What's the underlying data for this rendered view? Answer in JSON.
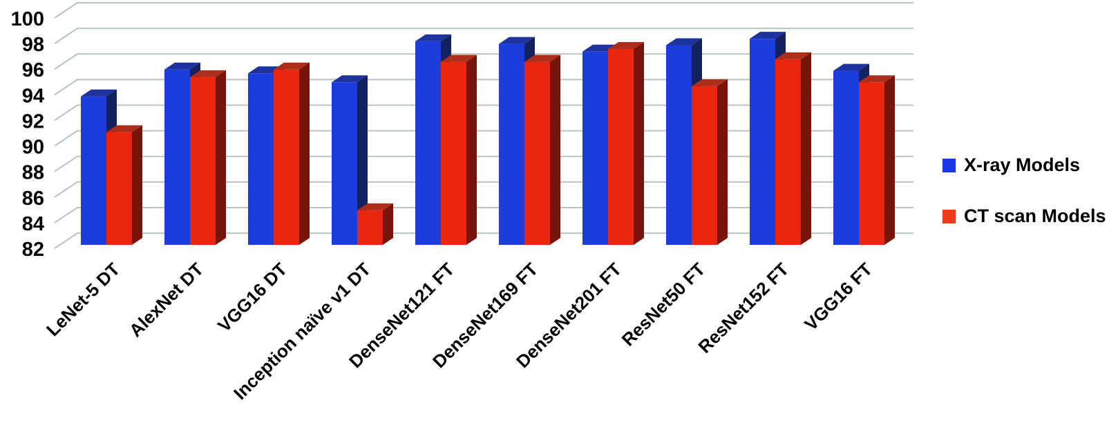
{
  "chart_data": {
    "type": "bar",
    "style": "3d-clustered-column",
    "title": "",
    "xlabel": "",
    "ylabel": "",
    "categories": [
      "LeNet-5 DT",
      "AlexNet DT",
      "VGG16 DT",
      "Inception naïve v1 DT",
      "DenseNet121 FT",
      "DenseNet169 FT",
      "DenseNet201 FT",
      "ResNet50 FT",
      "ResNet152 FT",
      "VGG16 FT"
    ],
    "series": [
      {
        "name": "X-ray Models",
        "values": [
          93.6,
          95.7,
          95.4,
          94.7,
          97.9,
          97.7,
          97.1,
          97.6,
          98.1,
          95.6
        ],
        "colors": {
          "front": "#1c3ddb",
          "top": "#1f339e",
          "side": "#13225f",
          "legend": "#1b38e8"
        }
      },
      {
        "name": "CT scan Models",
        "values": [
          90.8,
          95.1,
          95.7,
          84.7,
          96.3,
          96.3,
          97.3,
          94.4,
          96.5,
          94.7
        ],
        "colors": {
          "front": "#e92610",
          "top": "#ac2e1b",
          "side": "#7a140b",
          "legend": "#ee3a18"
        }
      }
    ],
    "ylim": [
      82,
      100
    ],
    "ytick_step": 2,
    "ytick_labels": [
      "82",
      "84",
      "86",
      "88",
      "90",
      "92",
      "94",
      "96",
      "98",
      "100"
    ],
    "grid": true,
    "gridline_color": "#b8c2c1",
    "axis_text_color": "#000000",
    "legend_position": "right"
  }
}
